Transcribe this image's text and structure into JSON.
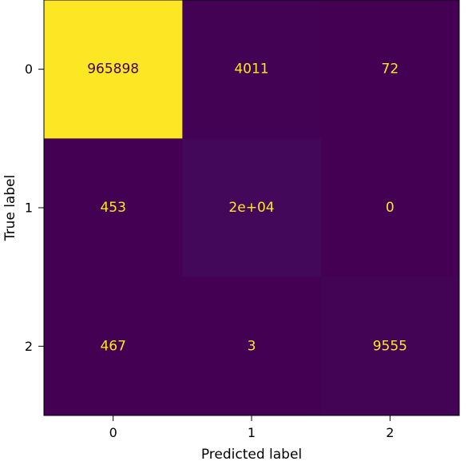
{
  "chart_data": {
    "type": "heatmap",
    "xlabel": "Predicted label",
    "ylabel": "True label",
    "x_categories": [
      "0",
      "1",
      "2"
    ],
    "y_categories": [
      "0",
      "1",
      "2"
    ],
    "values": [
      [
        965898,
        4011,
        72
      ],
      [
        453,
        20000,
        0
      ],
      [
        467,
        3,
        9555
      ]
    ],
    "cell_labels": [
      [
        "965898",
        "4011",
        "72"
      ],
      [
        "453",
        "2e+04",
        "0"
      ],
      [
        "467",
        "3",
        "9555"
      ]
    ],
    "colormap": "viridis",
    "colors": {
      "low": "#440154",
      "high": "#fde725",
      "text_on_dark": "#fde725",
      "text_on_light": "#440154"
    }
  }
}
